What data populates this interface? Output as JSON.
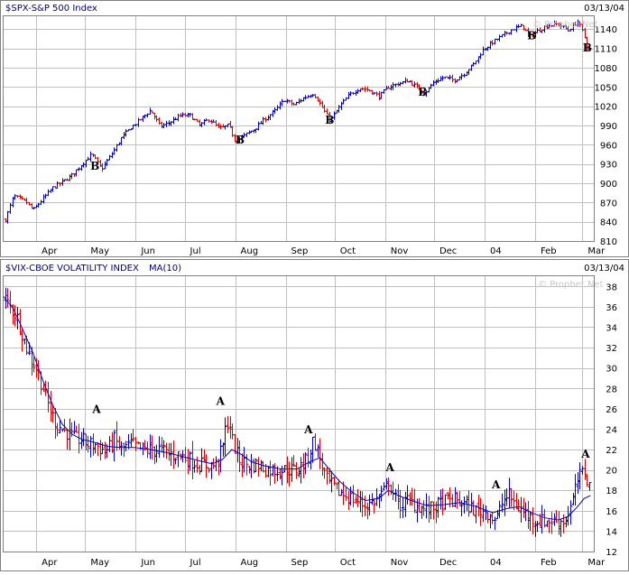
{
  "colors": {
    "up_bar": "#0000c8",
    "down_bar": "#dc0000",
    "ma_line": "#0000cc",
    "grid": "#c0c0c0",
    "frame": "#808080",
    "title_text": "#00007a",
    "watermark": "#c8c8c8"
  },
  "chart_data": [
    {
      "type": "ohlc",
      "title": "$SPX-S&P 500 Index",
      "date": "03/13/04",
      "watermark": "© Prophet.Net",
      "grid": true,
      "y_axis_side": "right",
      "ylim": [
        810,
        1160
      ],
      "yticks": [
        810,
        840,
        870,
        900,
        930,
        960,
        990,
        1020,
        1050,
        1080,
        1110,
        1140
      ],
      "x_range_days": [
        0,
        252
      ],
      "month_ticks": [
        {
          "day": 20,
          "label": "Apr"
        },
        {
          "day": 50,
          "label": "May"
        },
        {
          "day": 81,
          "label": "Jun"
        },
        {
          "day": 111,
          "label": "Jul"
        },
        {
          "day": 142,
          "label": "Aug"
        },
        {
          "day": 173,
          "label": "Sep"
        },
        {
          "day": 203,
          "label": "Oct"
        },
        {
          "day": 234,
          "label": "Nov"
        },
        {
          "day": 264,
          "label": "Dec"
        },
        {
          "day": 295,
          "label": "04"
        },
        {
          "day": 326,
          "label": "Feb"
        },
        {
          "day": 355,
          "label": "Mar"
        }
      ],
      "series": [
        {
          "close": [
            [
              0,
              836
            ],
            [
              6,
              880
            ],
            [
              14,
              870
            ],
            [
              18,
              858
            ],
            [
              24,
              876
            ],
            [
              30,
              893
            ],
            [
              36,
              902
            ],
            [
              42,
              913
            ],
            [
              48,
              930
            ],
            [
              54,
              945
            ],
            [
              60,
              922
            ],
            [
              66,
              945
            ],
            [
              72,
              970
            ],
            [
              78,
              987
            ],
            [
              84,
              1000
            ],
            [
              90,
              1014
            ],
            [
              96,
              988
            ],
            [
              102,
              995
            ],
            [
              108,
              1005
            ],
            [
              114,
              1006
            ],
            [
              120,
              990
            ],
            [
              126,
              1000
            ],
            [
              132,
              985
            ],
            [
              138,
              990
            ],
            [
              142,
              965
            ],
            [
              148,
              975
            ],
            [
              154,
              985
            ],
            [
              160,
              1000
            ],
            [
              166,
              1012
            ],
            [
              172,
              1030
            ],
            [
              178,
              1022
            ],
            [
              184,
              1033
            ],
            [
              190,
              1040
            ],
            [
              196,
              1015
            ],
            [
              200,
              997
            ],
            [
              206,
              1020
            ],
            [
              212,
              1038
            ],
            [
              218,
              1048
            ],
            [
              224,
              1045
            ],
            [
              230,
              1035
            ],
            [
              236,
              1050
            ],
            [
              242,
              1055
            ],
            [
              248,
              1060
            ],
            [
              254,
              1048
            ],
            [
              258,
              1040
            ],
            [
              264,
              1058
            ],
            [
              270,
              1065
            ],
            [
              276,
              1060
            ],
            [
              282,
              1070
            ],
            [
              288,
              1085
            ],
            [
              294,
              1108
            ],
            [
              300,
              1120
            ],
            [
              306,
              1130
            ],
            [
              312,
              1140
            ],
            [
              318,
              1145
            ],
            [
              322,
              1128
            ],
            [
              328,
              1138
            ],
            [
              334,
              1146
            ],
            [
              340,
              1148
            ],
            [
              346,
              1138
            ],
            [
              352,
              1152
            ],
            [
              356,
              1130
            ],
            [
              358,
              1108
            ],
            [
              360,
              1110
            ]
          ]
        }
      ],
      "annotations": [
        {
          "text": "B",
          "day": 56,
          "value": 921
        },
        {
          "text": "B",
          "day": 145,
          "value": 962
        },
        {
          "text": "B",
          "day": 200,
          "value": 993
        },
        {
          "text": "B",
          "day": 257,
          "value": 1036
        },
        {
          "text": "B",
          "day": 324,
          "value": 1124
        },
        {
          "text": "B",
          "day": 358,
          "value": 1105
        }
      ]
    },
    {
      "type": "ohlc",
      "title": "$VIX-CBOE VOLATILITY INDEX",
      "legend": "MA(10)",
      "date": "03/13/04",
      "watermark": "© Prophet.Net",
      "grid": true,
      "y_axis_side": "right",
      "ylim": [
        12,
        39
      ],
      "yticks": [
        12,
        14,
        16,
        18,
        20,
        22,
        24,
        26,
        28,
        30,
        32,
        34,
        36,
        38
      ],
      "month_ticks": [
        {
          "day": 20,
          "label": "Apr"
        },
        {
          "day": 50,
          "label": "May"
        },
        {
          "day": 81,
          "label": "Jun"
        },
        {
          "day": 111,
          "label": "Jul"
        },
        {
          "day": 142,
          "label": "Aug"
        },
        {
          "day": 173,
          "label": "Sep"
        },
        {
          "day": 203,
          "label": "Oct"
        },
        {
          "day": 234,
          "label": "Nov"
        },
        {
          "day": 264,
          "label": "Dec"
        },
        {
          "day": 295,
          "label": "04"
        },
        {
          "day": 326,
          "label": "Feb"
        },
        {
          "day": 355,
          "label": "Mar"
        }
      ],
      "series": [
        {
          "close": [
            [
              0,
              37
            ],
            [
              4,
              36
            ],
            [
              8,
              35
            ],
            [
              12,
              33
            ],
            [
              16,
              31
            ],
            [
              20,
              30
            ],
            [
              24,
              28
            ],
            [
              28,
              26
            ],
            [
              32,
              24.5
            ],
            [
              36,
              24
            ],
            [
              40,
              23.5
            ],
            [
              44,
              23
            ],
            [
              48,
              23
            ],
            [
              52,
              22.5
            ],
            [
              56,
              22.5
            ],
            [
              60,
              22
            ],
            [
              64,
              22
            ],
            [
              68,
              23
            ],
            [
              72,
              22
            ],
            [
              78,
              22.5
            ],
            [
              84,
              22
            ],
            [
              90,
              22
            ],
            [
              96,
              22
            ],
            [
              102,
              21.5
            ],
            [
              108,
              21.5
            ],
            [
              114,
              21
            ],
            [
              120,
              20.5
            ],
            [
              126,
              20.5
            ],
            [
              130,
              20.5
            ],
            [
              134,
              22
            ],
            [
              136,
              24
            ],
            [
              138,
              25
            ],
            [
              140,
              23
            ],
            [
              144,
              21
            ],
            [
              150,
              20.5
            ],
            [
              156,
              20.5
            ],
            [
              162,
              20
            ],
            [
              168,
              20
            ],
            [
              174,
              20
            ],
            [
              180,
              20
            ],
            [
              186,
              21
            ],
            [
              190,
              23
            ],
            [
              194,
              21
            ],
            [
              198,
              19
            ],
            [
              204,
              18
            ],
            [
              210,
              17.5
            ],
            [
              216,
              17
            ],
            [
              222,
              16.5
            ],
            [
              228,
              17
            ],
            [
              234,
              18
            ],
            [
              236,
              19
            ],
            [
              238,
              18
            ],
            [
              242,
              16.5
            ],
            [
              248,
              17
            ],
            [
              254,
              16.5
            ],
            [
              260,
              16
            ],
            [
              266,
              16.5
            ],
            [
              272,
              17
            ],
            [
              278,
              17
            ],
            [
              284,
              16.5
            ],
            [
              290,
              16
            ],
            [
              296,
              16
            ],
            [
              302,
              15
            ],
            [
              306,
              17
            ],
            [
              310,
              17.5
            ],
            [
              314,
              16.5
            ],
            [
              318,
              16
            ],
            [
              322,
              15.5
            ],
            [
              326,
              15
            ],
            [
              332,
              15
            ],
            [
              338,
              15
            ],
            [
              344,
              15
            ],
            [
              348,
              16.5
            ],
            [
              352,
              19
            ],
            [
              356,
              20
            ],
            [
              360,
              18
            ]
          ]
        },
        {
          "name": "MA(10)",
          "values": [
            [
              0,
              37
            ],
            [
              6,
              35.8
            ],
            [
              12,
              33.7
            ],
            [
              18,
              31.5
            ],
            [
              24,
              28.8
            ],
            [
              30,
              26.4
            ],
            [
              36,
              24.5
            ],
            [
              42,
              23.5
            ],
            [
              48,
              23
            ],
            [
              56,
              22.7
            ],
            [
              64,
              22.3
            ],
            [
              72,
              22.2
            ],
            [
              80,
              22.2
            ],
            [
              90,
              22
            ],
            [
              100,
              21.7
            ],
            [
              110,
              21.3
            ],
            [
              120,
              20.9
            ],
            [
              128,
              20.6
            ],
            [
              134,
              21
            ],
            [
              140,
              22
            ],
            [
              146,
              21.5
            ],
            [
              152,
              20.8
            ],
            [
              160,
              20.4
            ],
            [
              170,
              20.1
            ],
            [
              180,
              20.1
            ],
            [
              188,
              20.8
            ],
            [
              194,
              21.2
            ],
            [
              200,
              20
            ],
            [
              206,
              18.9
            ],
            [
              214,
              17.8
            ],
            [
              222,
              17
            ],
            [
              230,
              17.2
            ],
            [
              236,
              18
            ],
            [
              242,
              17.5
            ],
            [
              250,
              17
            ],
            [
              260,
              16.5
            ],
            [
              270,
              16.6
            ],
            [
              280,
              16.8
            ],
            [
              290,
              16.4
            ],
            [
              300,
              15.8
            ],
            [
              308,
              16.2
            ],
            [
              316,
              16.4
            ],
            [
              324,
              15.8
            ],
            [
              332,
              15.3
            ],
            [
              340,
              15.1
            ],
            [
              346,
              15.4
            ],
            [
              352,
              16.4
            ],
            [
              356,
              17.2
            ],
            [
              360,
              17.5
            ]
          ]
        }
      ],
      "annotations": [
        {
          "text": "A",
          "day": 57,
          "value": 25.6
        },
        {
          "text": "A",
          "day": 133,
          "value": 26.4
        },
        {
          "text": "A",
          "day": 187,
          "value": 23.6
        },
        {
          "text": "A",
          "day": 237,
          "value": 19.9
        },
        {
          "text": "A",
          "day": 302,
          "value": 18.2
        },
        {
          "text": "A",
          "day": 357,
          "value": 21.2
        }
      ]
    }
  ]
}
